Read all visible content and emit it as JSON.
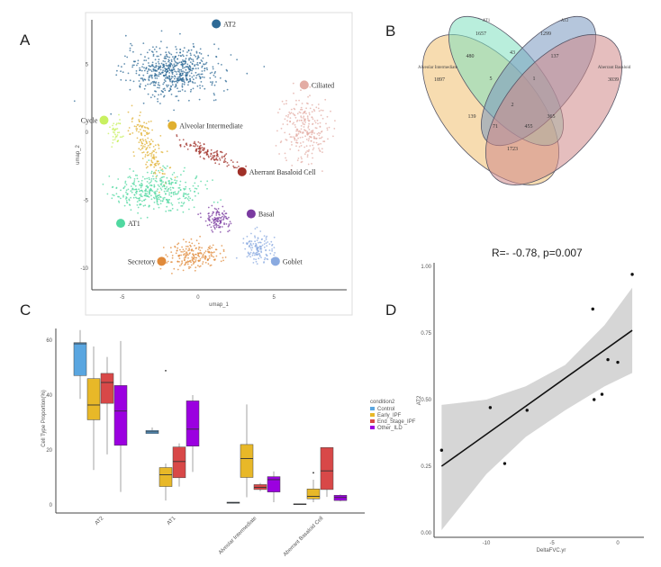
{
  "panels": {
    "a": "A",
    "b": "B",
    "c": "C",
    "d": "D"
  },
  "chart_data": [
    {
      "type": "scatter",
      "panel": "A",
      "xlabel": "umap_1",
      "ylabel": "umap_2",
      "xticks": [
        -5,
        0,
        5
      ],
      "yticks": [
        5,
        0,
        -5,
        -10
      ],
      "xlim": [
        -7.0,
        9.8
      ],
      "ylim": [
        -11.6,
        8.3
      ],
      "clusters": [
        {
          "name": "AT2",
          "color": "#2e6a96",
          "center": [
            -1.6,
            4.5
          ],
          "spread": [
            3.4,
            2.0
          ],
          "label_pos": [
            1.2,
            8.0
          ]
        },
        {
          "name": "Ciliated",
          "color": "#e3aca4",
          "center": [
            7.0,
            0.3
          ],
          "spread": [
            1.7,
            2.6
          ],
          "label_pos": [
            7.0,
            3.5
          ]
        },
        {
          "name": "Cycle",
          "color": "#c8f060",
          "center": [
            -5.4,
            0.0
          ],
          "spread": [
            0.5,
            1.0
          ],
          "label_pos": [
            -6.2,
            0.9
          ]
        },
        {
          "name": "Alveolar Intermediate",
          "color": "#e0b030",
          "center": [
            -3.3,
            -1.0
          ],
          "spread": [
            1.2,
            2.6
          ],
          "label_pos": [
            -1.7,
            0.5
          ]
        },
        {
          "name": "Aberrant Basaloid Cell",
          "color": "#a03028",
          "center": [
            0.6,
            -1.5
          ],
          "spread": [
            2.4,
            0.5
          ],
          "label_pos": [
            2.9,
            -2.9
          ]
        },
        {
          "name": "AT1",
          "color": "#50d8a0",
          "center": [
            -2.6,
            -4.3
          ],
          "spread": [
            3.1,
            1.5
          ],
          "label_pos": [
            -5.1,
            -6.7
          ]
        },
        {
          "name": "Basal",
          "color": "#7a3aa0",
          "center": [
            1.3,
            -6.4
          ],
          "spread": [
            0.9,
            1.0
          ],
          "label_pos": [
            3.5,
            -6.0
          ]
        },
        {
          "name": "Secretory",
          "color": "#e08a3a",
          "center": [
            -0.4,
            -9.1
          ],
          "spread": [
            2.0,
            1.1
          ],
          "label_pos": [
            -2.4,
            -9.5
          ]
        },
        {
          "name": "Goblet",
          "color": "#8aaae0",
          "center": [
            3.9,
            -8.6
          ],
          "spread": [
            1.1,
            1.3
          ],
          "label_pos": [
            5.1,
            -9.5
          ]
        }
      ]
    },
    {
      "type": "venn",
      "panel": "B",
      "sets": [
        {
          "name": "Alveolar Intermediate",
          "color": "#f0c070"
        },
        {
          "name": "AT1",
          "color": "#80e0c0"
        },
        {
          "name": "AT2",
          "color": "#7898c0"
        },
        {
          "name": "Aberrant Basaloid",
          "color": "#d08888"
        }
      ],
      "regions": [
        {
          "sets": [
            "AT1"
          ],
          "value": "1657"
        },
        {
          "sets": [
            "AT2"
          ],
          "value": "1299"
        },
        {
          "sets": [
            "Alveolar Intermediate"
          ],
          "value": "1897"
        },
        {
          "sets": [
            "Aberrant Basaloid"
          ],
          "value": "3039"
        },
        {
          "sets": [
            "Alveolar Intermediate",
            "AT1"
          ],
          "value": "480"
        },
        {
          "sets": [
            "AT1",
            "AT2"
          ],
          "value": "43"
        },
        {
          "sets": [
            "AT2",
            "Aberrant Basaloid"
          ],
          "value": "137"
        },
        {
          "sets": [
            "Alveolar Intermediate",
            "AT1",
            "AT2"
          ],
          "value": "5"
        },
        {
          "sets": [
            "AT1",
            "AT2",
            "Aberrant Basaloid"
          ],
          "value": "1"
        },
        {
          "sets": [
            "Alveolar Intermediate",
            "AT1",
            "AT2",
            "Aberrant Basaloid"
          ],
          "value": "2"
        },
        {
          "sets": [
            "Alveolar Intermediate",
            "AT2"
          ],
          "value": "139"
        },
        {
          "sets": [
            "Alveolar Intermediate",
            "AT2",
            "Aberrant Basaloid"
          ],
          "value": "71"
        },
        {
          "sets": [
            "Alveolar Intermediate",
            "AT1",
            "Aberrant Basaloid"
          ],
          "value": "455"
        },
        {
          "sets": [
            "AT1",
            "Aberrant Basaloid"
          ],
          "value": "365"
        },
        {
          "sets": [
            "Alveolar Intermediate",
            "Aberrant Basaloid"
          ],
          "value": "1723"
        }
      ]
    },
    {
      "type": "box",
      "panel": "C",
      "ylabel": "Cell Type Proportion(%)",
      "ylim": [
        0,
        66
      ],
      "yticks": [
        "0",
        "20",
        "40",
        "60"
      ],
      "categories": [
        "AT2",
        "AT1",
        "Alveolar Intermediate",
        "Aberrant Basaloid Cell"
      ],
      "legend_title": "condition2",
      "legend_position": "right",
      "series": [
        {
          "name": "Control",
          "color": "#5aa6e0",
          "boxes": [
            {
              "min": 38.6,
              "q1": 47.1,
              "median": 58.7,
              "q3": 59.1,
              "max": 63.7
            },
            {
              "min": 26.0,
              "q1": 26.0,
              "median": 26.6,
              "q3": 27.1,
              "max": 28.2
            },
            {
              "min": 0.5,
              "q1": 0.6,
              "median": 0.8,
              "q3": 1.0,
              "max": 1.0
            },
            {
              "min": 0.2,
              "q1": 0.2,
              "median": 0.3,
              "q3": 0.4,
              "max": 0.4
            }
          ]
        },
        {
          "name": "Early_IPF",
          "color": "#e8b828",
          "boxes": [
            {
              "min": 12.7,
              "q1": 31.0,
              "median": 36.4,
              "q3": 46.0,
              "max": 57.7
            },
            {
              "min": 1.6,
              "q1": 6.7,
              "median": 11.0,
              "q3": 13.6,
              "max": 15.1,
              "outliers": [
                48.9
              ]
            },
            {
              "min": 2.8,
              "q1": 10.0,
              "median": 16.9,
              "q3": 22.0,
              "max": 36.6
            },
            {
              "min": 1.0,
              "q1": 2.2,
              "median": 3.1,
              "q3": 5.8,
              "max": 9.2,
              "outliers": [
                11.7
              ]
            }
          ]
        },
        {
          "name": "End_Stage_IPF",
          "color": "#d84848",
          "boxes": [
            {
              "min": 18.4,
              "q1": 37.0,
              "median": 44.6,
              "q3": 47.9,
              "max": 53.9
            },
            {
              "min": 6.7,
              "q1": 9.9,
              "median": 15.8,
              "q3": 21.1,
              "max": 22.4
            },
            {
              "min": 5.0,
              "q1": 5.6,
              "median": 6.4,
              "q3": 7.4,
              "max": 8.0
            },
            {
              "min": 2.9,
              "q1": 5.6,
              "median": 12.4,
              "q3": 20.9,
              "max": 21.0
            }
          ]
        },
        {
          "name": "Other_ILD",
          "color": "#9b00e0",
          "boxes": [
            {
              "min": 4.7,
              "q1": 21.7,
              "median": 34.2,
              "q3": 43.5,
              "max": 59.7
            },
            {
              "min": 12.0,
              "q1": 21.4,
              "median": 27.6,
              "q3": 37.9,
              "max": 40.0
            },
            {
              "min": 1.0,
              "q1": 4.7,
              "median": 9.2,
              "q3": 10.3,
              "max": 12.2
            },
            {
              "min": 1.3,
              "q1": 1.6,
              "median": 2.7,
              "q3": 3.5,
              "max": 3.8
            }
          ]
        }
      ]
    },
    {
      "type": "scatter",
      "panel": "D",
      "title": "R=- -0.78, p=0.007",
      "xlabel": "DeltaFVC.yr",
      "ylabel": "AT2",
      "xlim": [
        -14.0,
        1.8
      ],
      "ylim": [
        -0.02,
        1.02
      ],
      "xticks": [
        "-10",
        "-5",
        "0"
      ],
      "yticks": [
        "0.00",
        "0.25",
        "0.50",
        "0.75",
        "1.00"
      ],
      "points": [
        {
          "x": -13.4,
          "y": 0.31
        },
        {
          "x": -9.7,
          "y": 0.47
        },
        {
          "x": -8.6,
          "y": 0.26
        },
        {
          "x": -6.9,
          "y": 0.46
        },
        {
          "x": -1.9,
          "y": 0.84
        },
        {
          "x": -1.8,
          "y": 0.5
        },
        {
          "x": -1.2,
          "y": 0.52
        },
        {
          "x": -0.75,
          "y": 0.65
        },
        {
          "x": 0.0,
          "y": 0.64
        },
        {
          "x": 1.1,
          "y": 0.97
        }
      ],
      "fit_line": {
        "x": [
          -13.4,
          1.1
        ],
        "y": [
          0.25,
          0.76
        ]
      },
      "confidence_band": {
        "x": [
          -13.4,
          -10,
          -7,
          -4,
          -1,
          1.1
        ],
        "lower": [
          0.01,
          0.22,
          0.36,
          0.46,
          0.55,
          0.6
        ],
        "upper": [
          0.48,
          0.5,
          0.55,
          0.63,
          0.78,
          0.92
        ]
      }
    }
  ]
}
